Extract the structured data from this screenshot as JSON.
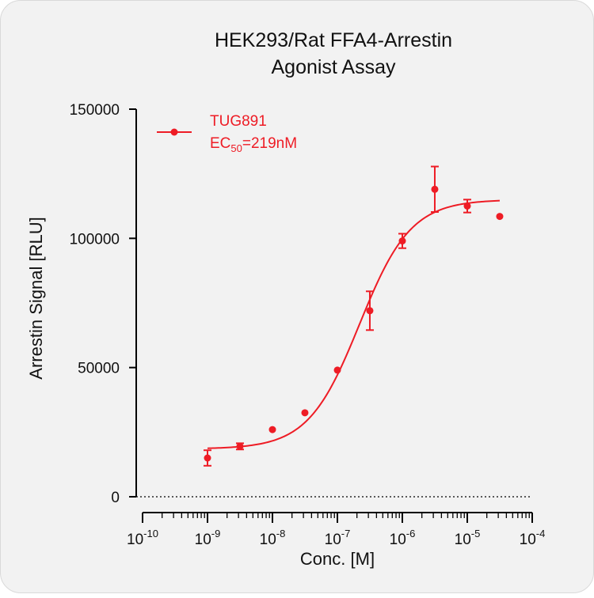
{
  "chart_data": {
    "type": "scatter",
    "title_line1": "HEK293/Rat FFA4-Arrestin",
    "title_line2": "Agonist Assay",
    "xlabel": "Conc. [M]",
    "ylabel": "Arrestin Signal [RLU]",
    "x_scale": "log",
    "xlim_exponents": [
      -10,
      -4
    ],
    "x_ticks": [
      {
        "base": "10",
        "exp": "-10"
      },
      {
        "base": "10",
        "exp": "-9"
      },
      {
        "base": "10",
        "exp": "-8"
      },
      {
        "base": "10",
        "exp": "-7"
      },
      {
        "base": "10",
        "exp": "-6"
      },
      {
        "base": "10",
        "exp": "-5"
      },
      {
        "base": "10",
        "exp": "-4"
      }
    ],
    "ylim": [
      0,
      150000
    ],
    "y_ticks": [
      "0",
      "50000",
      "100000",
      "150000"
    ],
    "zero_line": "dotted",
    "color": "#ee1c25",
    "legend": {
      "series_name": "TUG891",
      "ec_prefix": "EC",
      "ec_sub": "50",
      "ec_value": "=219nM",
      "position": "top-left"
    },
    "series": [
      {
        "name": "TUG891",
        "x": [
          1e-09,
          3.16e-09,
          1e-08,
          3.16e-08,
          1e-07,
          3.16e-07,
          1e-06,
          3.16e-06,
          1e-05,
          3.16e-05
        ],
        "y": [
          15000,
          19500,
          26000,
          32500,
          49000,
          72000,
          99000,
          119000,
          112500,
          108500
        ],
        "error": [
          3000,
          1200,
          0,
          0,
          0,
          7500,
          2800,
          8800,
          2500,
          0
        ]
      }
    ],
    "fit": {
      "model": "4PL",
      "bottom": 18500,
      "top": 115000,
      "ec50": 2.19e-07,
      "hill": 1.1,
      "x_range": [
        1e-09,
        3.16e-05
      ]
    }
  }
}
